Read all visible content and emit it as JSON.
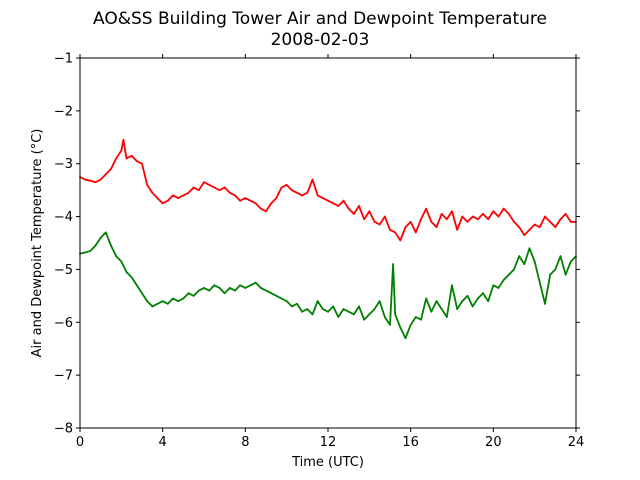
{
  "chart_data": {
    "type": "line",
    "title": "AO&SS Building Tower Air and Dewpoint Temperature",
    "subtitle": "2008-02-03",
    "xlabel": "Time (UTC)",
    "ylabel": "Air and Dewpoint Temperature (°C)",
    "xlim": [
      0,
      24
    ],
    "ylim": [
      -8,
      -1
    ],
    "x_ticks": [
      "0",
      "4",
      "8",
      "12",
      "16",
      "20",
      "24"
    ],
    "y_ticks": [
      "−8",
      "−7",
      "−6",
      "−5",
      "−4",
      "−3",
      "−2",
      "−1"
    ],
    "grid": false,
    "series": [
      {
        "color": "#ff0000",
        "x": [
          0,
          0.25,
          0.5,
          0.75,
          1.0,
          1.25,
          1.5,
          1.75,
          2.0,
          2.1,
          2.25,
          2.5,
          2.75,
          3.0,
          3.25,
          3.5,
          3.75,
          4.0,
          4.25,
          4.5,
          4.75,
          5.0,
          5.25,
          5.5,
          5.75,
          6.0,
          6.25,
          6.5,
          6.75,
          7.0,
          7.25,
          7.5,
          7.75,
          8.0,
          8.25,
          8.5,
          8.75,
          9.0,
          9.25,
          9.5,
          9.75,
          10.0,
          10.25,
          10.5,
          10.75,
          11.0,
          11.25,
          11.5,
          11.75,
          12.0,
          12.25,
          12.5,
          12.75,
          13.0,
          13.25,
          13.5,
          13.75,
          14.0,
          14.25,
          14.5,
          14.75,
          15.0,
          15.25,
          15.5,
          15.75,
          16.0,
          16.25,
          16.5,
          16.75,
          17.0,
          17.25,
          17.5,
          17.75,
          18.0,
          18.25,
          18.5,
          18.75,
          19.0,
          19.25,
          19.5,
          19.75,
          20.0,
          20.25,
          20.5,
          20.75,
          21.0,
          21.25,
          21.5,
          21.75,
          22.0,
          22.25,
          22.5,
          22.75,
          23.0,
          23.25,
          23.5,
          23.75,
          24.0
        ],
        "values": [
          -3.25,
          -3.3,
          -3.32,
          -3.35,
          -3.3,
          -3.2,
          -3.1,
          -2.9,
          -2.75,
          -2.55,
          -2.9,
          -2.85,
          -2.95,
          -3.0,
          -3.4,
          -3.55,
          -3.65,
          -3.75,
          -3.7,
          -3.6,
          -3.65,
          -3.6,
          -3.55,
          -3.45,
          -3.5,
          -3.35,
          -3.4,
          -3.45,
          -3.5,
          -3.45,
          -3.55,
          -3.6,
          -3.7,
          -3.65,
          -3.7,
          -3.75,
          -3.85,
          -3.9,
          -3.75,
          -3.65,
          -3.45,
          -3.4,
          -3.5,
          -3.55,
          -3.6,
          -3.55,
          -3.3,
          -3.6,
          -3.65,
          -3.7,
          -3.75,
          -3.8,
          -3.7,
          -3.85,
          -3.95,
          -3.8,
          -4.05,
          -3.9,
          -4.1,
          -4.15,
          -4.0,
          -4.25,
          -4.3,
          -4.45,
          -4.2,
          -4.1,
          -4.3,
          -4.05,
          -3.85,
          -4.1,
          -4.2,
          -3.95,
          -4.05,
          -3.9,
          -4.25,
          -4.0,
          -4.1,
          -4.0,
          -4.05,
          -3.95,
          -4.05,
          -3.9,
          -4.0,
          -3.85,
          -3.95,
          -4.1,
          -4.2,
          -4.35,
          -4.25,
          -4.15,
          -4.2,
          -4.0,
          -4.1,
          -4.2,
          -4.05,
          -3.95,
          -4.1,
          -4.1
        ]
      },
      {
        "color": "#008000",
        "x": [
          0,
          0.25,
          0.5,
          0.75,
          1.0,
          1.25,
          1.5,
          1.75,
          2.0,
          2.25,
          2.5,
          2.75,
          3.0,
          3.25,
          3.5,
          3.75,
          4.0,
          4.25,
          4.5,
          4.75,
          5.0,
          5.25,
          5.5,
          5.75,
          6.0,
          6.25,
          6.5,
          6.75,
          7.0,
          7.25,
          7.5,
          7.75,
          8.0,
          8.25,
          8.5,
          8.75,
          9.0,
          9.25,
          9.5,
          9.75,
          10.0,
          10.25,
          10.5,
          10.75,
          11.0,
          11.25,
          11.5,
          11.75,
          12.0,
          12.25,
          12.5,
          12.75,
          13.0,
          13.25,
          13.5,
          13.75,
          14.0,
          14.25,
          14.5,
          14.75,
          15.0,
          15.15,
          15.25,
          15.5,
          15.75,
          16.0,
          16.25,
          16.5,
          16.75,
          17.0,
          17.25,
          17.5,
          17.75,
          18.0,
          18.25,
          18.5,
          18.75,
          19.0,
          19.25,
          19.5,
          19.75,
          20.0,
          20.25,
          20.5,
          20.75,
          21.0,
          21.25,
          21.5,
          21.75,
          22.0,
          22.25,
          22.5,
          22.75,
          23.0,
          23.25,
          23.5,
          23.75,
          24.0
        ],
        "values": [
          -4.7,
          -4.68,
          -4.65,
          -4.55,
          -4.4,
          -4.3,
          -4.55,
          -4.75,
          -4.85,
          -5.05,
          -5.15,
          -5.3,
          -5.45,
          -5.6,
          -5.7,
          -5.65,
          -5.6,
          -5.65,
          -5.55,
          -5.6,
          -5.55,
          -5.45,
          -5.5,
          -5.4,
          -5.35,
          -5.4,
          -5.3,
          -5.35,
          -5.45,
          -5.35,
          -5.4,
          -5.3,
          -5.35,
          -5.3,
          -5.25,
          -5.35,
          -5.4,
          -5.45,
          -5.5,
          -5.55,
          -5.6,
          -5.7,
          -5.65,
          -5.8,
          -5.75,
          -5.85,
          -5.6,
          -5.75,
          -5.8,
          -5.7,
          -5.9,
          -5.75,
          -5.8,
          -5.85,
          -5.7,
          -5.95,
          -5.85,
          -5.75,
          -5.6,
          -5.9,
          -6.05,
          -4.9,
          -5.85,
          -6.1,
          -6.3,
          -6.05,
          -5.9,
          -5.95,
          -5.55,
          -5.8,
          -5.6,
          -5.75,
          -5.9,
          -5.3,
          -5.75,
          -5.6,
          -5.5,
          -5.7,
          -5.55,
          -5.45,
          -5.6,
          -5.3,
          -5.35,
          -5.2,
          -5.1,
          -5.0,
          -4.75,
          -4.9,
          -4.6,
          -4.85,
          -5.25,
          -5.65,
          -5.1,
          -5.0,
          -4.75,
          -5.1,
          -4.85,
          -4.75
        ]
      }
    ]
  }
}
